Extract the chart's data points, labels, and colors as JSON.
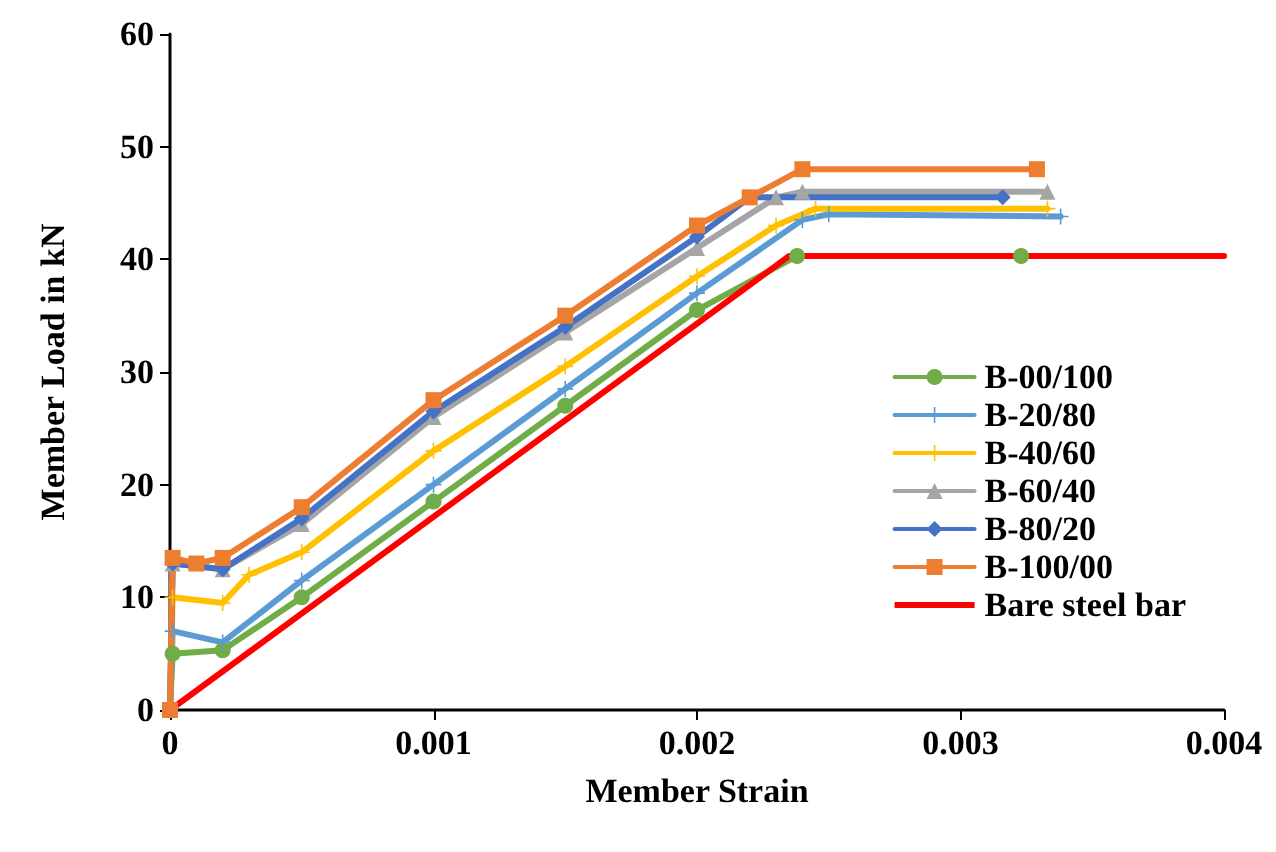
{
  "chart_data": {
    "type": "line",
    "xlabel": "Member Strain",
    "ylabel": "Member Load in kN",
    "xlim": [
      0,
      0.004
    ],
    "xticks": [
      0,
      0.001,
      0.002,
      0.003,
      0.004
    ],
    "ylim": [
      0,
      60
    ],
    "yticks": [
      0,
      10,
      20,
      30,
      40,
      50,
      60
    ],
    "grid": false,
    "legend": "right",
    "series": [
      {
        "name": "B-00/100",
        "color": "#70ad47",
        "marker": "circle",
        "x": [
          0,
          1e-05,
          0.0002,
          0.0005,
          0.001,
          0.0015,
          0.002,
          0.00238,
          0.00323
        ],
        "values": [
          0,
          5,
          5.3,
          10,
          18.5,
          27,
          35.5,
          40.3,
          40.3
        ]
      },
      {
        "name": "B-20/80",
        "color": "#5b9bd5",
        "marker": "cross",
        "x": [
          0,
          1e-05,
          0.0002,
          0.0005,
          0.001,
          0.0015,
          0.002,
          0.0024,
          0.0025,
          0.00338
        ],
        "values": [
          0,
          7,
          6,
          11.5,
          20,
          28.5,
          37,
          43.5,
          44,
          43.8
        ]
      },
      {
        "name": "B-40/60",
        "color": "#ffc000",
        "marker": "cross",
        "x": [
          0,
          1e-05,
          0.0002,
          0.0003,
          0.0005,
          0.001,
          0.0015,
          0.002,
          0.0023,
          0.00245,
          0.00333
        ],
        "values": [
          0,
          10,
          9.5,
          12,
          14,
          23,
          30.5,
          38.5,
          43,
          44.5,
          44.5
        ]
      },
      {
        "name": "B-60/40",
        "color": "#a5a5a5",
        "marker": "triangle",
        "x": [
          0,
          1e-05,
          0.0002,
          0.0005,
          0.001,
          0.0015,
          0.002,
          0.0023,
          0.0024,
          0.00333
        ],
        "values": [
          0,
          13,
          12.5,
          16.5,
          26,
          33.5,
          41,
          45.5,
          46,
          46
        ]
      },
      {
        "name": "B-80/20",
        "color": "#4472c4",
        "marker": "diamond",
        "x": [
          0,
          1e-05,
          0.0002,
          0.0005,
          0.001,
          0.0015,
          0.002,
          0.0022,
          0.00316
        ],
        "values": [
          0,
          13,
          12.5,
          17,
          26.5,
          34,
          42,
          45.5,
          45.5
        ]
      },
      {
        "name": "B-100/00",
        "color": "#ed7d31",
        "marker": "square",
        "x": [
          0,
          1e-05,
          0.0001,
          0.0002,
          0.0005,
          0.001,
          0.0015,
          0.002,
          0.0022,
          0.0024,
          0.00329
        ],
        "values": [
          0,
          13.5,
          13,
          13.5,
          18,
          27.5,
          35,
          43,
          45.5,
          48,
          48
        ]
      },
      {
        "name": "Bare steel bar",
        "color": "#ff0000",
        "marker": "none",
        "x": [
          0,
          0.00235,
          0.004
        ],
        "values": [
          0,
          40.3,
          40.3
        ]
      }
    ]
  }
}
